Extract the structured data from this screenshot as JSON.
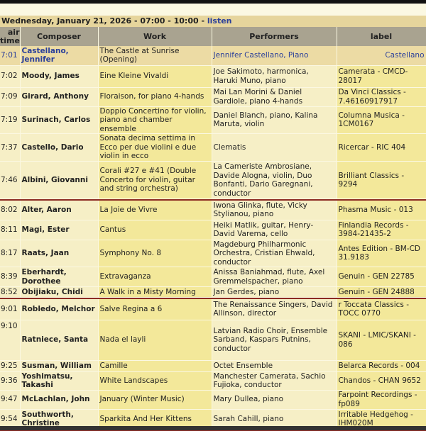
{
  "header": {
    "title": "Wednesday, January 21,  2026 - 07:00 - 10:00 - ",
    "listen_link": "listen"
  },
  "columns": {
    "time": "air time",
    "composer": "Composer",
    "work": "Work",
    "performers": "Performers",
    "label": "label"
  },
  "colors": {
    "accent_link": "#2a3f9a",
    "separator": "#8b2a22",
    "header_bg": "#a9a390",
    "row_bg": "#f3e89a"
  },
  "rows": [
    {
      "time": "7:01",
      "composer": "Castellano, Jennifer",
      "work": "The Castle at Sunrise (Opening)",
      "performers": "Jennifer Castellano, Piano",
      "label": "Castellano",
      "highlight": true
    },
    {
      "time": "7:02",
      "composer": "Moody, James",
      "work": "Eine Kleine Vivaldi",
      "performers": "Joe Sakimoto, harmonica, Haruki Muno, piano",
      "label": "Camerata - CMCD-28017"
    },
    {
      "time": "7:09",
      "composer": "Girard, Anthony",
      "work": "Floraison, for piano 4-hands",
      "performers": "Mai Lan Morini & Daniel Gardiole, piano 4-hands",
      "label": "Da Vinci Classics - 7.46160917917"
    },
    {
      "time": "7:19",
      "composer": "Surinach, Carlos",
      "work": "Doppio Concertino for violin, piano and chamber ensemble",
      "performers": "Daniel Blanch, piano, Kalina Maruta, violin",
      "label": "Columna Musica - 1CM0167"
    },
    {
      "time": "7:37",
      "composer": "Castello, Dario",
      "work": "Sonata decima settima in Ecco per due violini e due violin in ecco",
      "performers": "Clematis",
      "label": "Ricercar - RIC 404"
    },
    {
      "time": "7:46",
      "composer": "Albini, Giovanni",
      "work": "Corali #27 e #41 (Double Concerto for violin, guitar and string orchestra)",
      "performers": "La Cameriste Ambrosiane, Davide Alogna, violin, Duo Bonfanti, Dario Garegnani, conductor",
      "label": "Brilliant Classics - 9294",
      "separator_after": true
    },
    {
      "time": "8:02",
      "composer": "Alter, Aaron",
      "work": "La Joie de Vivre",
      "performers": "Iwona Glinka, flute, Vicky Stylianou, piano",
      "label": "Phasma Music - 013"
    },
    {
      "time": "8:11",
      "composer": "Magi, Ester",
      "work": "Cantus",
      "performers": "Heiki Matlik, guitar, Henry-David Varema, cello",
      "label": "Finlandia Records - 3984-21435-2"
    },
    {
      "time": "8:17",
      "composer": "Raats, Jaan",
      "work": "Symphony No. 8",
      "performers": "Magdeburg Philharmonic Orchestra, Cristian Ehwald, conductor",
      "label": "Antes Edition - BM-CD 31.9183"
    },
    {
      "time": "8:39",
      "composer": "Eberhardt, Dorothee",
      "work": "Extravaganza",
      "performers": "Anissa Baniahmad, flute, Axel Gremmelspacher, piano",
      "label": "Genuin - GEN 22785"
    },
    {
      "time": "8:52",
      "composer": "Obijiaku, Chidi",
      "work": "A Walk in a Misty Morning",
      "performers": "Jan Gerdes, piano",
      "label": "Genuin - GEN 24888",
      "separator_after": true
    },
    {
      "time": "9:01",
      "composer": "Robledo, Melchor",
      "work": "Salve Regina a 6",
      "performers": "The Renaissance Singers, David Allinson, director",
      "label": "r Toccata Classics - TOCC 0770"
    },
    {
      "time": "9:10",
      "composer": "Ratniece, Santa",
      "work": "Nada el layli",
      "performers": "Latvian Radio Choir, Ensemble Sarband, Kaspars Putnins, conductor",
      "label": "SKANI - LMIC/SKANI - 086",
      "time_top": true
    },
    {
      "time": "9:25",
      "composer": "Susman, William",
      "work": "Camille",
      "performers": "Octet Ensemble",
      "label": "Belarca Records - 004"
    },
    {
      "time": "9:36",
      "composer": "Yoshimatsu, Takashi",
      "work": "White Landscapes",
      "performers": "Manchester Camerata, Sachio Fujioka, conductor",
      "label": "Chandos - CHAN 9652"
    },
    {
      "time": "9:47",
      "composer": "McLachlan, John",
      "work": "January (Winter Music)",
      "performers": "Mary Dullea, piano",
      "label": "Farpoint Recordings - fp089"
    },
    {
      "time": "9:54",
      "composer": "Southworth, Christine",
      "work": "Sparkita And Her Kittens",
      "performers": "Sarah Cahill, piano",
      "label": "Irritable Hedgehog - IHM020M",
      "separator_after": true
    }
  ]
}
